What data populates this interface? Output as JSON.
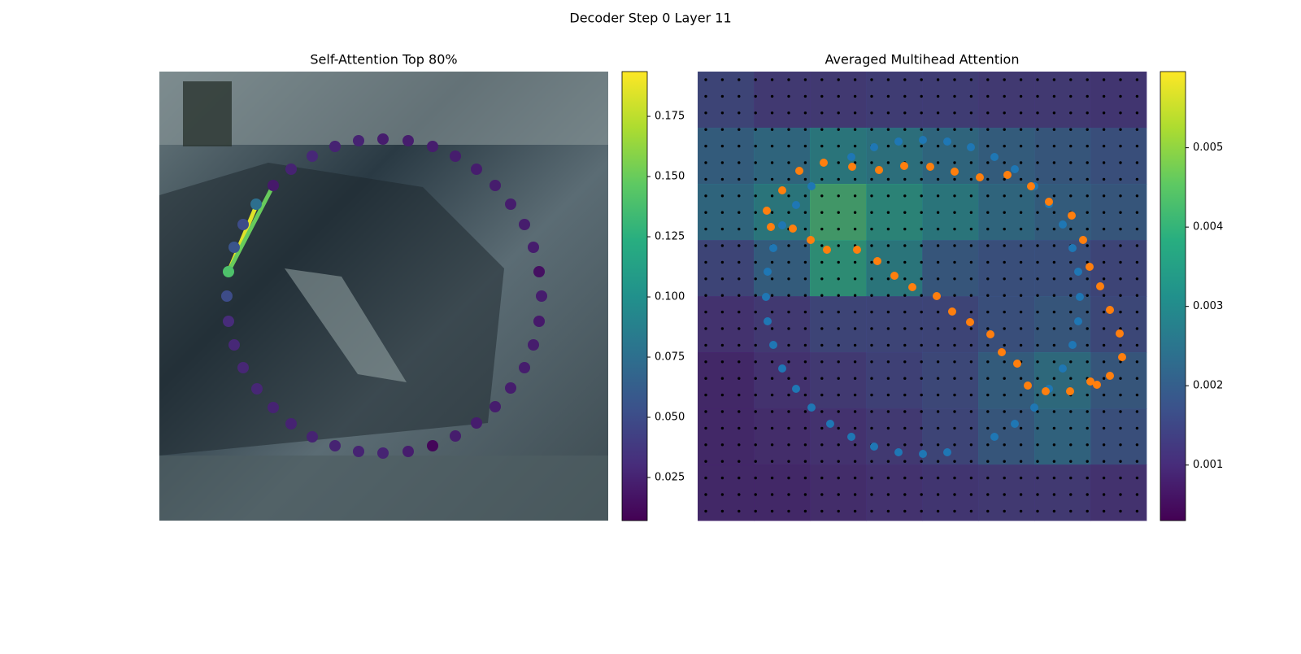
{
  "title": "Decoder Step 0 Layer 11",
  "chart_data": [
    {
      "type": "scatter",
      "title": "Self-Attention Top 80%",
      "xlim": [
        0,
        552
      ],
      "ylim": [
        552,
        0
      ],
      "series": [
        {
          "x": [
            85,
            83,
            85,
            92,
            103,
            120,
            140,
            162,
            188,
            216,
            245,
            275,
            306,
            336,
            364,
            390,
            413,
            432,
            449,
            460,
            467,
            470,
            467,
            460,
            449,
            432,
            413,
            390,
            364,
            336,
            306,
            275,
            245,
            216,
            188,
            162,
            140,
            119,
            103,
            92
          ],
          "y": [
            246,
            276,
            307,
            336,
            364,
            390,
            413,
            433,
            449,
            460,
            467,
            469,
            467,
            460,
            448,
            432,
            412,
            389,
            364,
            336,
            307,
            276,
            246,
            216,
            188,
            163,
            140,
            120,
            104,
            92,
            85,
            83,
            85,
            92,
            104,
            120,
            140,
            163,
            188,
            216
          ],
          "values": [
            0.14,
            0.05,
            0.03,
            0.028,
            0.027,
            0.027,
            0.025,
            0.025,
            0.025,
            0.025,
            0.025,
            0.025,
            0.022,
            0.01,
            0.022,
            0.022,
            0.022,
            0.022,
            0.022,
            0.022,
            0.02,
            0.022,
            0.015,
            0.022,
            0.022,
            0.022,
            0.022,
            0.022,
            0.022,
            0.022,
            0.022,
            0.022,
            0.025,
            0.025,
            0.028,
            0.025,
            0.02,
            0.075,
            0.05,
            0.055
          ]
        }
      ],
      "links": [
        {
          "x": [
            85,
            120
          ],
          "y": [
            246,
            163
          ],
          "value": 0.185
        },
        {
          "x": [
            85,
            140
          ],
          "y": [
            246,
            140
          ],
          "value": 0.15
        }
      ],
      "colorbar": {
        "clim": [
          0.0071,
          0.1936
        ],
        "ticks": [
          0.025,
          {
            "value": 0.05,
            "label": "0.050"
          },
          0.075,
          {
            "value": 0.1,
            "label": "0.100"
          },
          0.125,
          {
            "value": 0.15,
            "label": "0.150"
          },
          0.175
        ]
      }
    },
    {
      "type": "scatter",
      "title": "Averaged Multihead Attention",
      "xlim": [
        0,
        552
      ],
      "ylim": [
        552,
        0
      ],
      "heatmap": [
        [
          0.0015,
          0.0012,
          0.0012,
          0.0013,
          0.0013,
          0.0012,
          0.0012,
          0.0011
        ],
        [
          0.0022,
          0.0025,
          0.003,
          0.0028,
          0.0025,
          0.0022,
          0.002,
          0.0018
        ],
        [
          0.0025,
          0.003,
          0.0042,
          0.0035,
          0.003,
          0.0025,
          0.0022,
          0.002
        ],
        [
          0.0015,
          0.0022,
          0.0038,
          0.003,
          0.002,
          0.0018,
          0.0018,
          0.0015
        ],
        [
          0.001,
          0.0012,
          0.0015,
          0.0015,
          0.0015,
          0.0018,
          0.002,
          0.0016
        ],
        [
          0.0008,
          0.001,
          0.0012,
          0.0014,
          0.0016,
          0.0022,
          0.0026,
          0.002
        ],
        [
          0.0008,
          0.0009,
          0.001,
          0.0012,
          0.0015,
          0.002,
          0.0024,
          0.0018
        ],
        [
          0.0008,
          0.0008,
          0.0009,
          0.001,
          0.0011,
          0.0012,
          0.0012,
          0.001
        ]
      ],
      "series": [
        {
          "color": "#1f77b4",
          "x": [
            217,
            247,
            277,
            307,
            336,
            365,
            390,
            414,
            432,
            449,
            461,
            468,
            470,
            468,
            461,
            449,
            432,
            414,
            390,
            365,
            307,
            277,
            247,
            217,
            189,
            163,
            140,
            121,
            104,
            93,
            86,
            84,
            86,
            93,
            104,
            121,
            140,
            189
          ],
          "y": [
            93,
            86,
            84,
            86,
            93,
            105,
            120,
            141,
            163,
            188,
            217,
            246,
            277,
            307,
            336,
            365,
            390,
            413,
            433,
            449,
            468,
            470,
            468,
            461,
            449,
            433,
            413,
            390,
            365,
            336,
            307,
            277,
            246,
            217,
            189,
            164,
            141,
            105
          ]
        },
        {
          "color": "#ff7f0e",
          "x": [
            85,
            90,
            104,
            125,
            155,
            190,
            223,
            254,
            286,
            316,
            347,
            381,
            410,
            432,
            460,
            474,
            482,
            495,
            507,
            519,
            522,
            507,
            491,
            483,
            458,
            428,
            406,
            393,
            374,
            360,
            335,
            313,
            294,
            264,
            242,
            221,
            196,
            159,
            139,
            117
          ],
          "y": [
            171,
            191,
            146,
            122,
            112,
            117,
            121,
            116,
            117,
            123,
            130,
            127,
            141,
            160,
            177,
            207,
            240,
            264,
            293,
            322,
            351,
            374,
            385,
            381,
            393,
            393,
            386,
            359,
            345,
            323,
            308,
            295,
            276,
            265,
            251,
            233,
            219,
            219,
            207,
            193
          ]
        }
      ],
      "colorbar": {
        "clim": [
          0.0003,
          0.00596
        ],
        "ticks": [
          0.001,
          0.002,
          0.003,
          0.004,
          0.005
        ]
      }
    }
  ]
}
